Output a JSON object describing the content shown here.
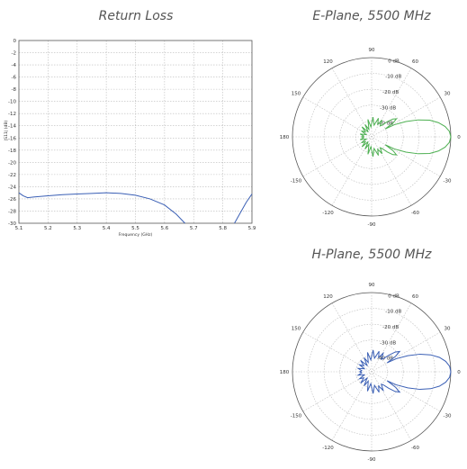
{
  "chart_data": [
    {
      "type": "line",
      "title": "Return Loss",
      "xlabel": "Frequency (GHz)",
      "ylabel": "|S11| (dB)",
      "xlim": [
        5.1,
        5.9
      ],
      "ylim": [
        -30,
        0
      ],
      "x_ticks": [
        "5.1",
        "5.2",
        "5.3",
        "5.4",
        "5.5",
        "5.6",
        "5.7",
        "5.8",
        "5.9"
      ],
      "y_ticks": [
        "0",
        "-2",
        "-4",
        "-6",
        "-8",
        "-10",
        "-12",
        "-14",
        "-16",
        "-18",
        "-20",
        "-22",
        "-24",
        "-26",
        "-28",
        "-30"
      ],
      "grid": true,
      "line_color": "#3a5fb5",
      "segments": [
        {
          "x": [
            5.1,
            5.115,
            5.13,
            5.15,
            5.2,
            5.25,
            5.3,
            5.35,
            5.4,
            5.45,
            5.5,
            5.55,
            5.6,
            5.64,
            5.67
          ],
          "y": [
            -25.0,
            -25.5,
            -25.8,
            -25.7,
            -25.5,
            -25.3,
            -25.2,
            -25.1,
            -25.0,
            -25.1,
            -25.4,
            -26.0,
            -27.0,
            -28.5,
            -30.0
          ]
        },
        {
          "x": [
            5.84,
            5.86,
            5.88,
            5.9
          ],
          "y": [
            -30.0,
            -28.3,
            -26.6,
            -25.2
          ]
        }
      ]
    },
    {
      "type": "polar",
      "title": "E-Plane, 5500 MHz",
      "radial_labels": [
        "0 dB",
        "-10 dB",
        "-20 dB",
        "-30 dB",
        "-40 dB"
      ],
      "angle_labels": [
        "0",
        "30",
        "60",
        "90",
        "120",
        "150",
        "180",
        "-150",
        "-120",
        "-90",
        "-60",
        "-30"
      ],
      "line_color": "#4caf50",
      "pattern": {
        "angle_deg": [
          0,
          4,
          8,
          12,
          16,
          20,
          24,
          28,
          30,
          33,
          36,
          40,
          44,
          48,
          52,
          58,
          64,
          70,
          78,
          86,
          94,
          102,
          110,
          118,
          126,
          134,
          142,
          150,
          158,
          166,
          174,
          180
        ],
        "gain_db": [
          0,
          -0.6,
          -2.5,
          -5.5,
          -9.5,
          -15,
          -21,
          -27,
          -32,
          -27,
          -24.5,
          -26,
          -29,
          -32,
          -33,
          -30,
          -33,
          -30,
          -34,
          -30,
          -35,
          -31,
          -36,
          -33,
          -37,
          -33,
          -36,
          -34,
          -37,
          -34,
          -36,
          -35
        ]
      }
    },
    {
      "type": "polar",
      "title": "H-Plane, 5500 MHz",
      "radial_labels": [
        "0 dB",
        "-10 dB",
        "-20 dB",
        "-30 dB",
        "-40 dB"
      ],
      "angle_labels": [
        "0",
        "30",
        "60",
        "90",
        "120",
        "150",
        "180",
        "-150",
        "-120",
        "-90",
        "-60",
        "-30"
      ],
      "line_color": "#3a5fb5",
      "pattern": {
        "angle_deg": [
          0,
          4,
          8,
          12,
          16,
          20,
          24,
          28,
          30,
          33,
          36,
          40,
          44,
          48,
          52,
          58,
          64,
          70,
          78,
          86,
          94,
          102,
          110,
          118,
          126,
          134,
          142,
          150,
          158,
          166,
          174,
          180
        ],
        "gain_db": [
          0,
          -0.5,
          -2.2,
          -5,
          -9,
          -14,
          -20,
          -26,
          -31,
          -25.5,
          -22.5,
          -24.5,
          -28,
          -31,
          -32,
          -29,
          -32,
          -29,
          -33,
          -29,
          -34,
          -30,
          -35,
          -32,
          -36,
          -32,
          -35,
          -33,
          -36,
          -33,
          -35,
          -34
        ]
      }
    }
  ]
}
